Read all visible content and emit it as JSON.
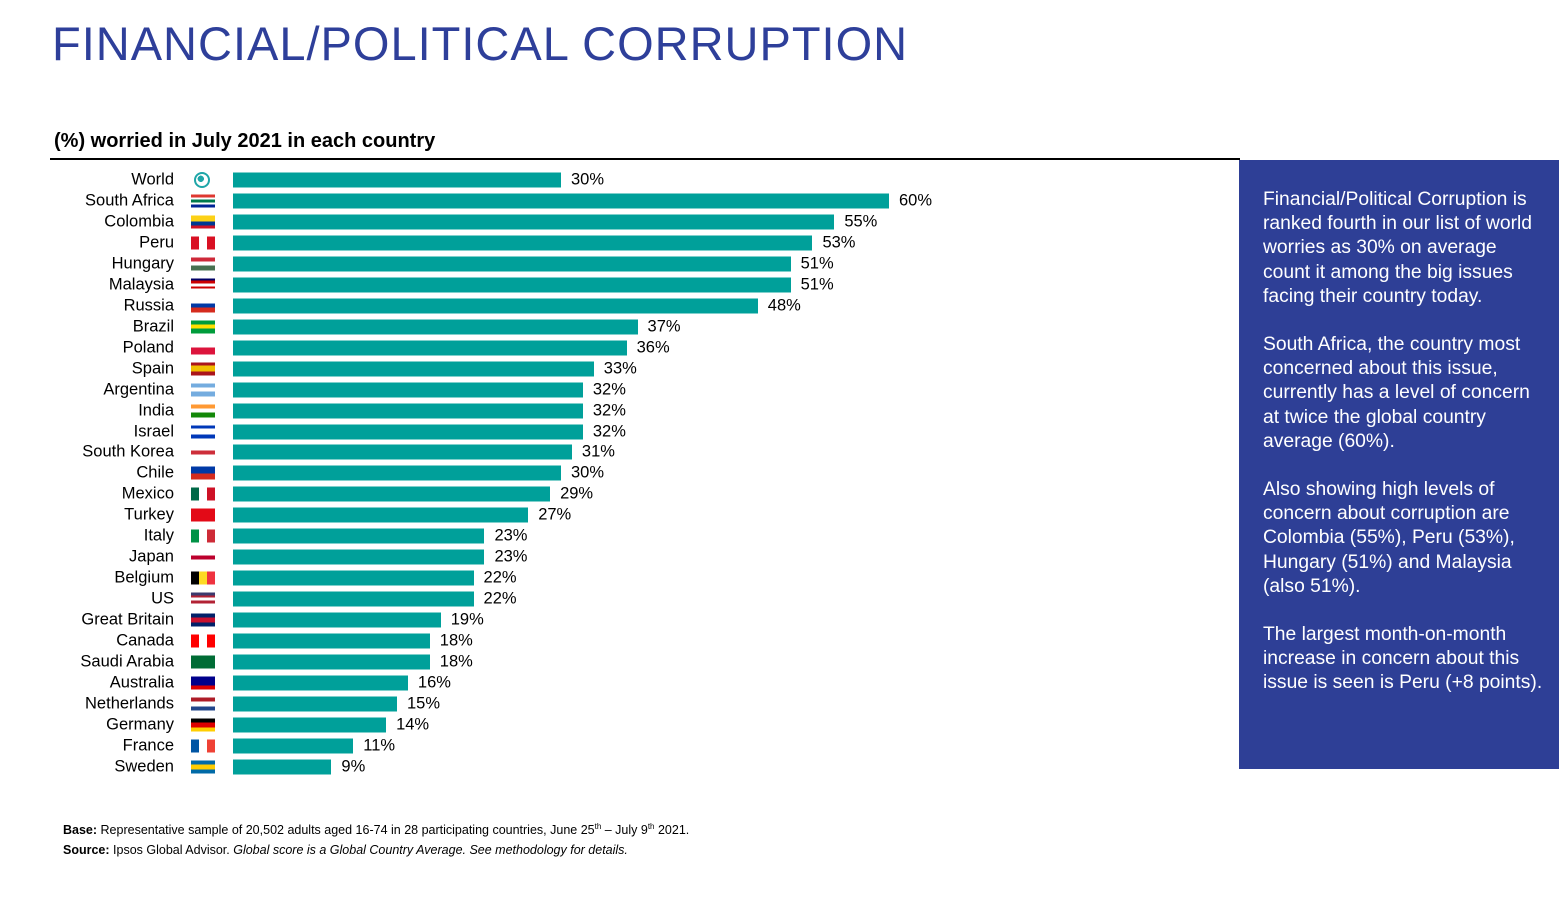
{
  "title": "FINANCIAL/POLITICAL CORRUPTION",
  "colors": {
    "bar": "#00A09A",
    "title": "#2E3F9A",
    "panel": "#2E3F96"
  },
  "chart_data": {
    "type": "bar",
    "orientation": "horizontal",
    "title": "(%) worried in July 2021 in each country",
    "categories": [
      "World",
      "South Africa",
      "Colombia",
      "Peru",
      "Hungary",
      "Malaysia",
      "Russia",
      "Brazil",
      "Poland",
      "Spain",
      "Argentina",
      "India",
      "Israel",
      "South Korea",
      "Chile",
      "Mexico",
      "Turkey",
      "Italy",
      "Japan",
      "Belgium",
      "US",
      "Great Britain",
      "Canada",
      "Saudi Arabia",
      "Australia",
      "Netherlands",
      "Germany",
      "France",
      "Sweden"
    ],
    "values": [
      30,
      60,
      55,
      53,
      51,
      51,
      48,
      37,
      36,
      33,
      32,
      32,
      32,
      31,
      30,
      29,
      27,
      23,
      23,
      22,
      22,
      19,
      18,
      18,
      16,
      15,
      14,
      11,
      9
    ],
    "value_suffix": "%",
    "xlim": [
      0,
      60
    ],
    "grid": false
  },
  "flags": [
    {
      "icon": "globe-icon"
    },
    {
      "dir": "h",
      "colors": [
        "#de3831",
        "#fff",
        "#007a4d",
        "#fff",
        "#002395"
      ]
    },
    {
      "dir": "h",
      "colors": [
        "#fcd116",
        "#fcd116",
        "#003893",
        "#ce1126"
      ]
    },
    {
      "dir": "v",
      "colors": [
        "#d91023",
        "#fff",
        "#d91023"
      ]
    },
    {
      "dir": "h",
      "colors": [
        "#ce2939",
        "#fff",
        "#477050"
      ]
    },
    {
      "dir": "h",
      "colors": [
        "#010066",
        "#cc0001",
        "#fff",
        "#cc0001",
        "#fff"
      ]
    },
    {
      "dir": "h",
      "colors": [
        "#fff",
        "#0039a6",
        "#d52b1e"
      ]
    },
    {
      "dir": "h",
      "colors": [
        "#009c3b",
        "#ffdf00",
        "#009c3b"
      ]
    },
    {
      "dir": "h",
      "colors": [
        "#fff",
        "#dc143c"
      ]
    },
    {
      "dir": "h",
      "colors": [
        "#aa151b",
        "#f1bf00",
        "#f1bf00",
        "#aa151b"
      ]
    },
    {
      "dir": "h",
      "colors": [
        "#74acdf",
        "#fff",
        "#74acdf"
      ]
    },
    {
      "dir": "h",
      "colors": [
        "#ff9933",
        "#fff",
        "#138808"
      ]
    },
    {
      "dir": "h",
      "colors": [
        "#0038b8",
        "#fff",
        "#fff",
        "#0038b8"
      ]
    },
    {
      "dir": "h",
      "colors": [
        "#fff",
        "#cd2e3a",
        "#fff"
      ]
    },
    {
      "dir": "h",
      "colors": [
        "#0039a6",
        "#d52b1e"
      ]
    },
    {
      "dir": "v",
      "colors": [
        "#006847",
        "#fff",
        "#ce1126"
      ]
    },
    {
      "dir": "h",
      "colors": [
        "#e30a17"
      ]
    },
    {
      "dir": "v",
      "colors": [
        "#009246",
        "#fff",
        "#ce2b37"
      ]
    },
    {
      "dir": "h",
      "colors": [
        "#fff",
        "#bc002d",
        "#fff"
      ]
    },
    {
      "dir": "v",
      "colors": [
        "#000",
        "#fdda24",
        "#ef3340"
      ]
    },
    {
      "dir": "h",
      "colors": [
        "#3c3b6e",
        "#b22234",
        "#fff",
        "#b22234",
        "#fff"
      ]
    },
    {
      "dir": "h",
      "colors": [
        "#012169",
        "#c8102e",
        "#012169"
      ]
    },
    {
      "dir": "v",
      "colors": [
        "#ff0000",
        "#fff",
        "#ff0000"
      ]
    },
    {
      "dir": "h",
      "colors": [
        "#006c35"
      ]
    },
    {
      "dir": "h",
      "colors": [
        "#00008b",
        "#00008b",
        "#d00"
      ]
    },
    {
      "dir": "h",
      "colors": [
        "#ae1c28",
        "#fff",
        "#21468b"
      ]
    },
    {
      "dir": "h",
      "colors": [
        "#000",
        "#dd0000",
        "#ffce00"
      ]
    },
    {
      "dir": "v",
      "colors": [
        "#0055a4",
        "#fff",
        "#ef4135"
      ]
    },
    {
      "dir": "h",
      "colors": [
        "#006aa7",
        "#fecc00",
        "#006aa7"
      ]
    }
  ],
  "panel": {
    "paragraphs": [
      "Financial/Political Corruption is ranked fourth in our list of world worries as 30% on average count it among the big issues facing their country today.",
      "South Africa, the country most concerned about this issue, currently has a level of concern at twice the global country average (60%).",
      "Also showing high levels of concern about corruption are Colombia (55%), Peru (53%), Hungary (51%) and Malaysia (also 51%).",
      "The largest month-on-month increase in concern about this issue is seen is Peru (+8 points)."
    ]
  },
  "notes": {
    "base_label": "Base:",
    "base_text": " Representative sample of 20,502 adults aged 16-74 in 28 participating countries, June 25",
    "base_sup1": "th",
    "base_mid": " – July 9",
    "base_sup2": "th",
    "base_end": " 2021.",
    "source_label": "Source:",
    "source_text": " Ipsos Global Advisor. ",
    "source_italic": "Global score is a Global Country Average. See methodology for details."
  }
}
